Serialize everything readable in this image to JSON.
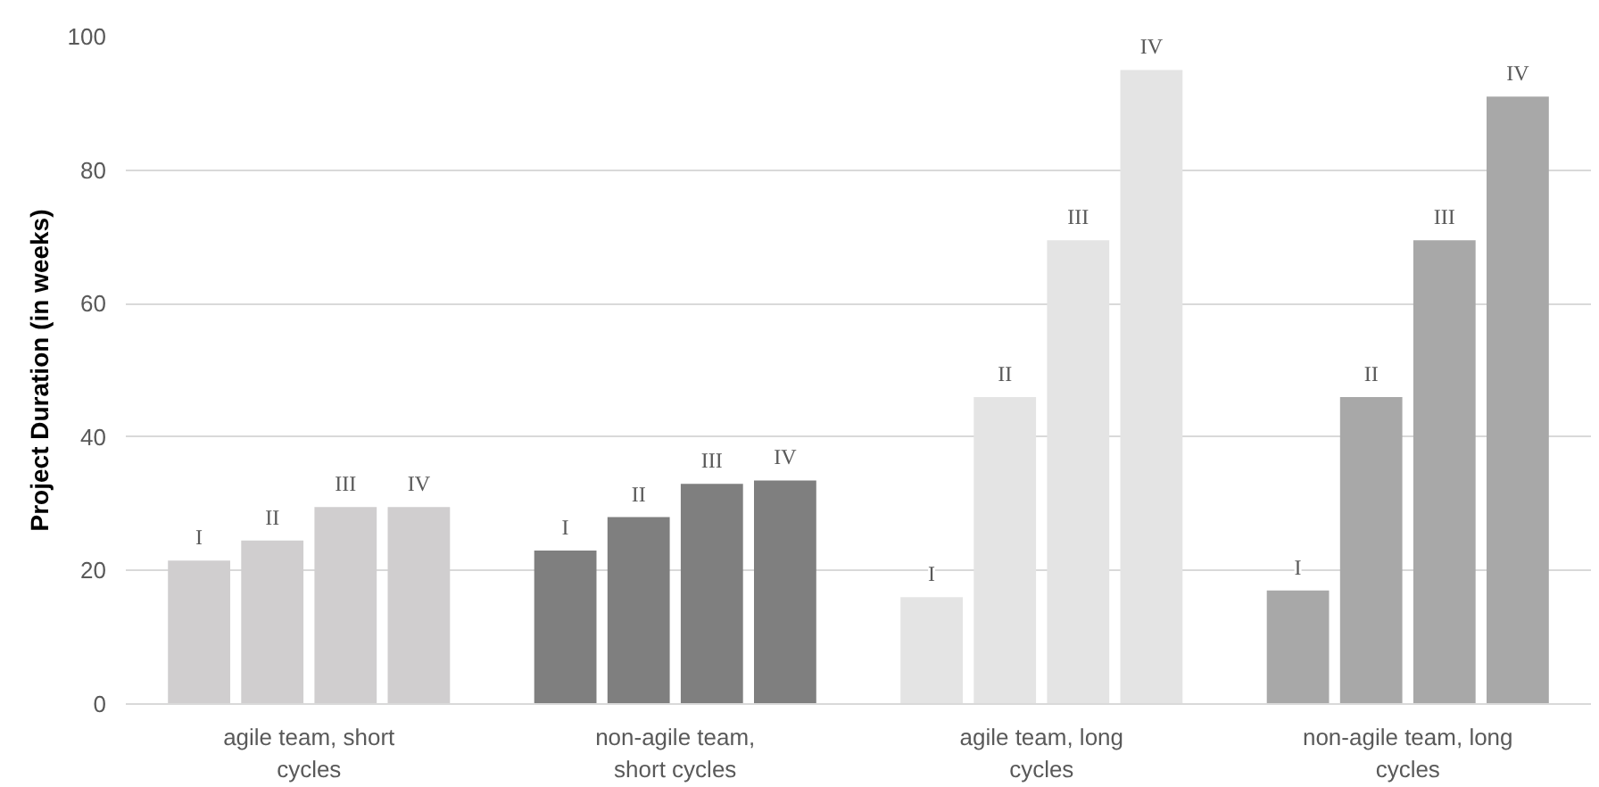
{
  "chart_data": {
    "type": "bar",
    "ylabel": "Project Duration (in weeks)",
    "categories": [
      "agile team, short cycles",
      "non-agile team, short cycles",
      "agile team, long cycles",
      "non-agile team, long cycles"
    ],
    "series": [
      {
        "name": "I",
        "colors": [
          "#d0cecf",
          "#7f7f7f",
          "#e4e4e4",
          "#a8a8a8"
        ],
        "values": [
          21.5,
          23,
          16,
          17
        ]
      },
      {
        "name": "II",
        "colors": [
          "#d0cecf",
          "#7f7f7f",
          "#e4e4e4",
          "#a8a8a8"
        ],
        "values": [
          24.5,
          28,
          46,
          46
        ]
      },
      {
        "name": "III",
        "colors": [
          "#d0cecf",
          "#7f7f7f",
          "#e4e4e4",
          "#a8a8a8"
        ],
        "values": [
          29.5,
          33,
          69.5,
          69.5
        ]
      },
      {
        "name": "IV",
        "colors": [
          "#d0cecf",
          "#7f7f7f",
          "#e4e4e4",
          "#a8a8a8"
        ],
        "values": [
          29.5,
          33.5,
          95,
          91
        ]
      }
    ],
    "ylim": [
      0,
      100
    ],
    "yticks": [
      0,
      20,
      40,
      60,
      80,
      100
    ],
    "grid": "y"
  }
}
